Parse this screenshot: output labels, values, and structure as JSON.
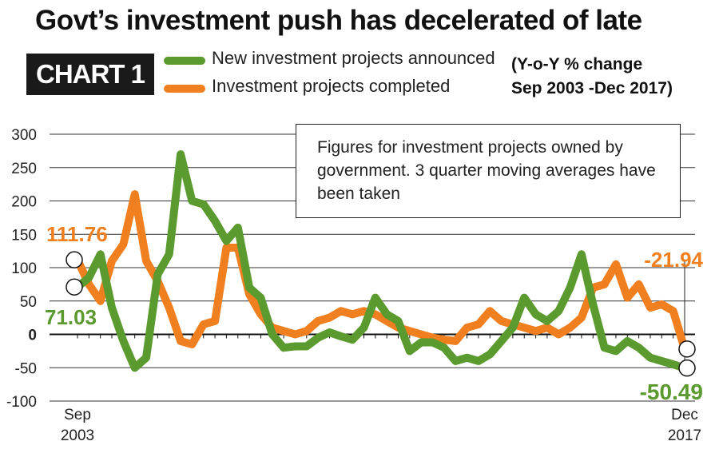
{
  "title": "Govt’s investment push has decelerated of late",
  "badge": "CHART 1",
  "subtitle": "(Y-o-Y % change\nSep 2003 -Dec 2017)",
  "note": "Figures for investment projects owned by government. 3 quarter moving averages have been taken",
  "colors": {
    "announced": "#5a9a2e",
    "completed": "#f07f1f",
    "grid": "#222222"
  },
  "chart_data": {
    "type": "line",
    "ylim": [
      -100,
      300
    ],
    "yticks": [
      300,
      250,
      200,
      150,
      100,
      50,
      0,
      -50,
      -100
    ],
    "x_labels": [
      {
        "line1": "Sep",
        "line2": "2003"
      },
      {
        "line1": "Dec",
        "line2": "2017"
      }
    ],
    "grid": true,
    "legend_position": "top",
    "series": [
      {
        "name": "New investment projects announced",
        "color": "#5a9a2e",
        "start_label": "71.03",
        "end_label": "-50.49",
        "values": [
          71.03,
          85,
          120,
          40,
          -10,
          -50,
          -35,
          90,
          120,
          270,
          200,
          195,
          170,
          140,
          160,
          70,
          55,
          0,
          -20,
          -18,
          -18,
          -5,
          3,
          -3,
          -8,
          10,
          55,
          30,
          20,
          -25,
          -12,
          -12,
          -20,
          -40,
          -35,
          -40,
          -30,
          -10,
          10,
          55,
          30,
          20,
          35,
          70,
          120,
          45,
          -20,
          -25,
          -10,
          -20,
          -35,
          -40,
          -45,
          -50.49
        ]
      },
      {
        "name": "Investment projects completed",
        "color": "#f07f1f",
        "start_label": "111.76",
        "end_label": "-21.94",
        "values": [
          111.76,
          75,
          50,
          110,
          135,
          210,
          110,
          80,
          40,
          -10,
          -15,
          15,
          20,
          130,
          130,
          60,
          30,
          10,
          5,
          0,
          5,
          20,
          25,
          35,
          30,
          35,
          30,
          20,
          10,
          5,
          0,
          -5,
          -8,
          -10,
          10,
          15,
          35,
          20,
          15,
          10,
          5,
          10,
          0,
          10,
          25,
          70,
          75,
          105,
          55,
          75,
          40,
          45,
          35,
          -21.94
        ]
      }
    ]
  }
}
